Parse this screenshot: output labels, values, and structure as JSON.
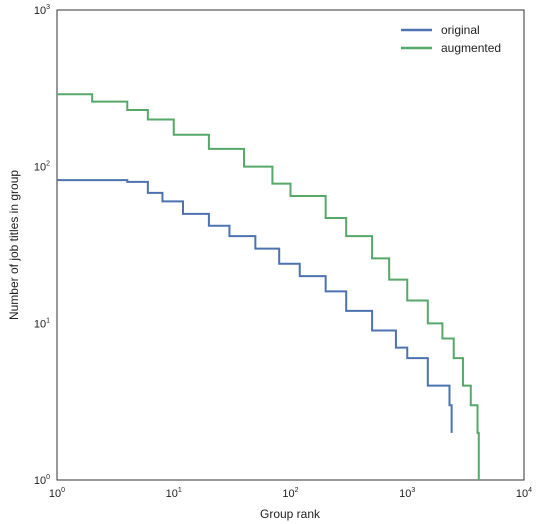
{
  "chart_data": {
    "type": "line",
    "title": "",
    "xlabel": "Group rank",
    "ylabel": "Number of job titles in group",
    "xscale": "log",
    "yscale": "log",
    "xlim": [
      1,
      10000
    ],
    "ylim": [
      1,
      1000
    ],
    "grid": false,
    "legend_position": "top-right",
    "x_ticks": [
      {
        "base": "10",
        "exp": "0"
      },
      {
        "base": "10",
        "exp": "1"
      },
      {
        "base": "10",
        "exp": "2"
      },
      {
        "base": "10",
        "exp": "3"
      },
      {
        "base": "10",
        "exp": "4"
      }
    ],
    "y_ticks": [
      {
        "base": "10",
        "exp": "0"
      },
      {
        "base": "10",
        "exp": "1"
      },
      {
        "base": "10",
        "exp": "2"
      },
      {
        "base": "10",
        "exp": "3"
      }
    ],
    "series": [
      {
        "name": "original",
        "color": "#4c72b0",
        "x": [
          1,
          4,
          6,
          8,
          12,
          20,
          30,
          50,
          80,
          120,
          200,
          300,
          500,
          800,
          1000,
          1500,
          2300,
          2400
        ],
        "y": [
          82,
          80,
          68,
          60,
          50,
          42,
          36,
          30,
          24,
          20,
          16,
          12,
          9,
          7,
          6,
          4,
          3,
          2
        ]
      },
      {
        "name": "augmented",
        "color": "#55a868",
        "x": [
          1,
          2,
          4,
          6,
          10,
          20,
          40,
          70,
          100,
          200,
          300,
          500,
          700,
          1000,
          1500,
          2000,
          2500,
          3000,
          3500,
          4000,
          4100
        ],
        "y": [
          290,
          260,
          230,
          200,
          160,
          130,
          100,
          78,
          65,
          47,
          36,
          26,
          19,
          14,
          10,
          8,
          6,
          4,
          3,
          2,
          1
        ]
      }
    ]
  }
}
